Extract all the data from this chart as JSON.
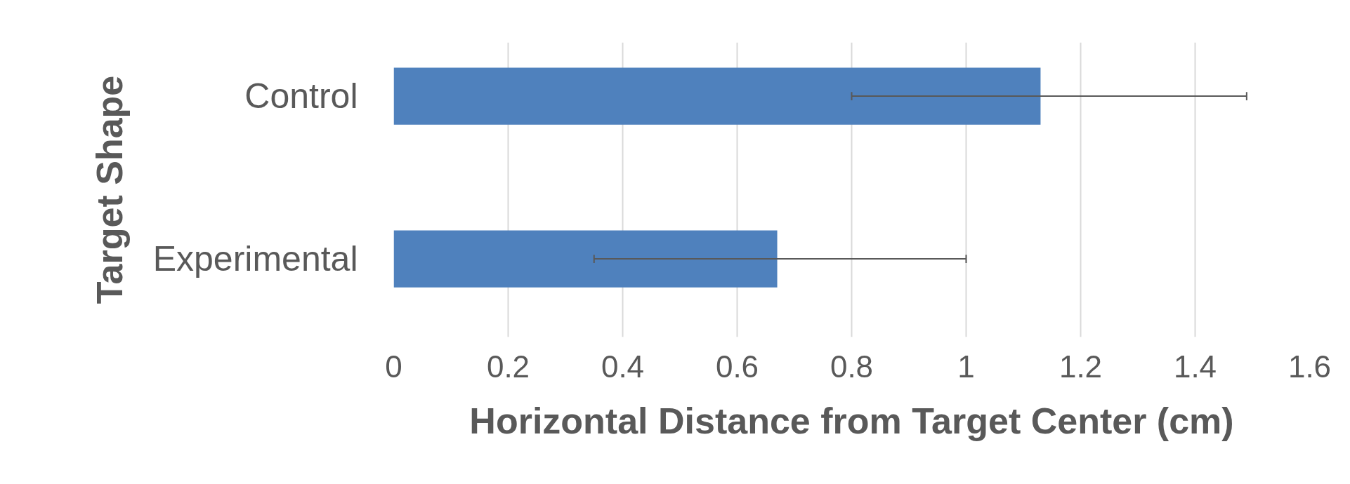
{
  "chart_data": {
    "type": "bar",
    "orientation": "horizontal",
    "xlabel": "Horizontal Distance from Target Center (cm)",
    "ylabel": "Target Shape",
    "categories": [
      "Control",
      "Experimental"
    ],
    "values": [
      1.13,
      0.67
    ],
    "errors": [
      [
        0.8,
        1.49
      ],
      [
        0.35,
        1.0
      ]
    ],
    "color": "#4f81bd",
    "xlim": [
      0,
      1.6
    ],
    "xticks": [
      0,
      0.2,
      0.4,
      0.6,
      0.8,
      1,
      1.2,
      1.4,
      1.6
    ],
    "grid": "x"
  }
}
